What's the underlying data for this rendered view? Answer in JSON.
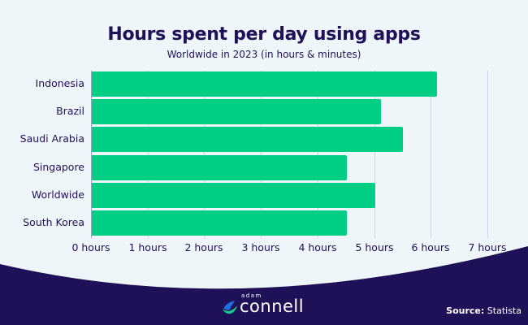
{
  "header": {
    "title": "Hours spent per day using apps",
    "subtitle": "Worldwide in 2023 (in hours & minutes)"
  },
  "chart_data": {
    "type": "bar",
    "orientation": "horizontal",
    "title": "Hours spent per day using apps",
    "subtitle": "Worldwide in 2023 (in hours & minutes)",
    "xlabel": "",
    "ylabel": "",
    "categories": [
      "Indonesia",
      "Brazil",
      "Saudi Arabia",
      "Singapore",
      "Worldwide",
      "South Korea"
    ],
    "values": [
      6.1,
      5.1,
      5.5,
      4.5,
      5.0,
      4.5
    ],
    "xlim": [
      0,
      7
    ],
    "x_ticks": [
      "0 hours",
      "1 hours",
      "2 hours",
      "3 hours",
      "4 hours",
      "5 hours",
      "6 hours",
      "7 hours"
    ],
    "grid": true,
    "legend": null,
    "bar_color": "#00ce85"
  },
  "footer": {
    "logo_small": "adam",
    "logo_big": "connell",
    "source_label": "Source:",
    "source_value": "Statista"
  },
  "colors": {
    "background": "#eef6fa",
    "navy": "#1e1157",
    "bar": "#00ce85",
    "grid": "#cfd3e6"
  }
}
